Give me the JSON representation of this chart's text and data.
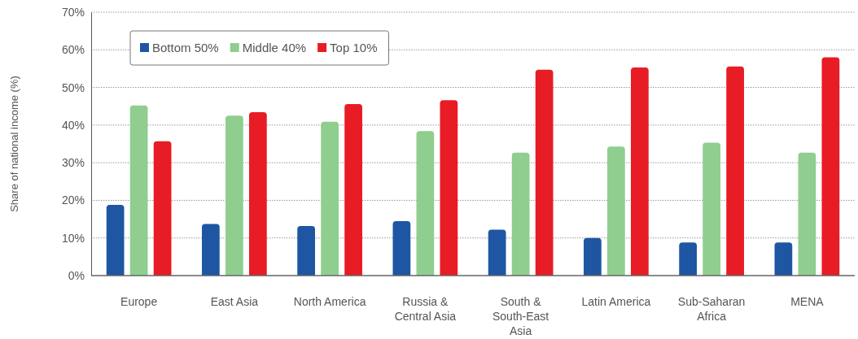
{
  "chart_data": {
    "type": "bar",
    "ylabel": "Share of national income (%)",
    "categories": [
      "Europe",
      "East Asia",
      "North America",
      "Russia & Central Asia",
      "South & South-East Asia",
      "Latin America",
      "Sub-Saharan Africa",
      "MENA"
    ],
    "series": [
      {
        "name": "Bottom 50%",
        "color": "#1f56a3",
        "values": [
          18.8,
          13.7,
          13.2,
          14.5,
          12.2,
          10.0,
          8.8,
          8.8
        ]
      },
      {
        "name": "Middle 40%",
        "color": "#8fce8f",
        "values": [
          45.2,
          42.5,
          40.9,
          38.4,
          32.7,
          34.3,
          35.3,
          32.7
        ]
      },
      {
        "name": "Top 10%",
        "color": "#e81c24",
        "values": [
          35.7,
          43.4,
          45.6,
          46.6,
          54.7,
          55.3,
          55.6,
          58.0
        ]
      }
    ],
    "ylim": [
      0,
      70
    ],
    "yticks": [
      {
        "value": 0,
        "label": "0%"
      },
      {
        "value": 10,
        "label": "10%"
      },
      {
        "value": 20,
        "label": "20%"
      },
      {
        "value": 30,
        "label": "30%"
      },
      {
        "value": 40,
        "label": "40%"
      },
      {
        "value": 50,
        "label": "50%"
      },
      {
        "value": 60,
        "label": "60%"
      },
      {
        "value": 70,
        "label": "70%"
      }
    ],
    "grid": "y",
    "legend": "top left"
  }
}
